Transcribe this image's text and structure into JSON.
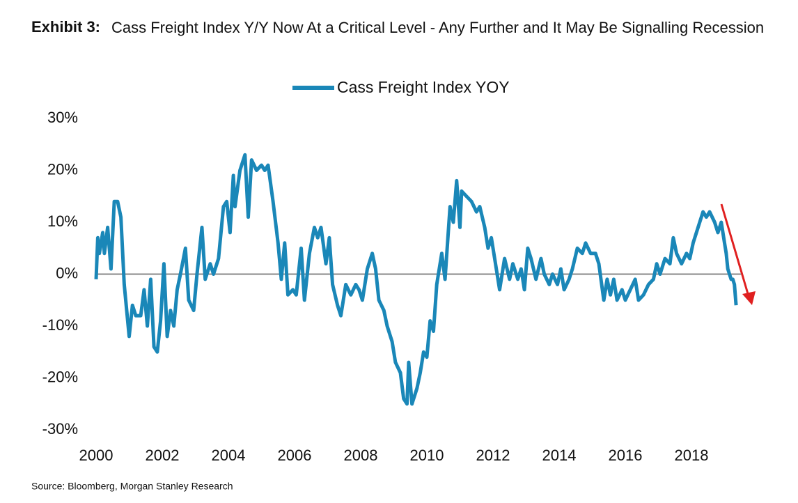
{
  "chart_data": {
    "type": "line",
    "exhibit": "Exhibit 3:",
    "title": "Cass Freight Index Y/Y Now At a Critical Level - Any Further and It May Be Signalling Recession",
    "source": "Source: Bloomberg, Morgan Stanley Research",
    "x": [
      2000.0,
      2000.05,
      2000.1,
      2000.2,
      2000.25,
      2000.35,
      2000.45,
      2000.55,
      2000.65,
      2000.75,
      2000.85,
      2001.0,
      2001.1,
      2001.2,
      2001.35,
      2001.45,
      2001.55,
      2001.65,
      2001.75,
      2001.85,
      2001.95,
      2002.05,
      2002.15,
      2002.25,
      2002.35,
      2002.45,
      2002.55,
      2002.7,
      2002.8,
      2002.95,
      2003.05,
      2003.2,
      2003.3,
      2003.45,
      2003.55,
      2003.7,
      2003.85,
      2003.95,
      2004.05,
      2004.15,
      2004.2,
      2004.35,
      2004.5,
      2004.6,
      2004.7,
      2004.85,
      2005.0,
      2005.1,
      2005.2,
      2005.35,
      2005.5,
      2005.6,
      2005.7,
      2005.8,
      2005.95,
      2006.05,
      2006.2,
      2006.3,
      2006.45,
      2006.6,
      2006.7,
      2006.8,
      2006.95,
      2007.05,
      2007.15,
      2007.3,
      2007.4,
      2007.55,
      2007.7,
      2007.85,
      2007.95,
      2008.05,
      2008.2,
      2008.35,
      2008.45,
      2008.55,
      2008.7,
      2008.8,
      2008.95,
      2009.05,
      2009.2,
      2009.3,
      2009.4,
      2009.45,
      2009.55,
      2009.7,
      2009.8,
      2009.9,
      2010.0,
      2010.1,
      2010.2,
      2010.3,
      2010.45,
      2010.55,
      2010.7,
      2010.8,
      2010.9,
      2011.0,
      2011.05,
      2011.2,
      2011.35,
      2011.5,
      2011.6,
      2011.75,
      2011.85,
      2011.95,
      2012.05,
      2012.2,
      2012.35,
      2012.5,
      2012.6,
      2012.75,
      2012.85,
      2012.95,
      2013.05,
      2013.15,
      2013.3,
      2013.45,
      2013.55,
      2013.7,
      2013.8,
      2013.95,
      2014.05,
      2014.15,
      2014.3,
      2014.4,
      2014.55,
      2014.7,
      2014.8,
      2014.95,
      2015.1,
      2015.2,
      2015.35,
      2015.45,
      2015.55,
      2015.65,
      2015.75,
      2015.9,
      2016.0,
      2016.15,
      2016.3,
      2016.4,
      2016.55,
      2016.7,
      2016.85,
      2016.95,
      2017.05,
      2017.2,
      2017.35,
      2017.45,
      2017.55,
      2017.7,
      2017.85,
      2017.95,
      2018.05,
      2018.2,
      2018.35,
      2018.45,
      2018.55,
      2018.7,
      2018.8,
      2018.9,
      2019.0,
      2019.05,
      2019.1,
      2019.15,
      2019.2,
      2019.25,
      2019.3,
      2019.35
    ],
    "series": [
      {
        "name": "Cass Freight Index YOY",
        "color": "#1a87b8",
        "values": [
          -1,
          7,
          4,
          8,
          4,
          9,
          1,
          14,
          14,
          11,
          -2,
          -12,
          -6,
          -8,
          -8,
          -3,
          -10,
          -1,
          -14,
          -15,
          -9,
          2,
          -12,
          -7,
          -10,
          -3,
          0,
          5,
          -5,
          -7,
          0,
          9,
          -1,
          2,
          0,
          3,
          13,
          14,
          8,
          19,
          13,
          20,
          23,
          11,
          22,
          20,
          21,
          20,
          21,
          14,
          6,
          -1,
          6,
          -4,
          -3,
          -4,
          5,
          -5,
          4,
          9,
          7,
          9,
          2,
          7,
          -2,
          -6,
          -8,
          -2,
          -4,
          -2,
          -3,
          -5,
          1,
          4,
          1,
          -5,
          -7,
          -10,
          -13,
          -17,
          -19,
          -24,
          -25,
          -17,
          -25,
          -22,
          -19,
          -15,
          -16,
          -9,
          -11,
          -2,
          4,
          -1,
          13,
          10,
          18,
          9,
          16,
          15,
          14,
          12,
          13,
          9,
          5,
          7,
          3,
          -3,
          3,
          -1,
          2,
          -1,
          1,
          -3,
          5,
          3,
          -1,
          3,
          0,
          -2,
          0,
          -2,
          1,
          -3,
          -1,
          1,
          5,
          4,
          6,
          4,
          4,
          2,
          -5,
          -1,
          -4,
          -1,
          -5,
          -3,
          -5,
          -3,
          -1,
          -5,
          -4,
          -2,
          -1,
          2,
          0,
          3,
          2,
          7,
          4,
          2,
          4,
          3,
          6,
          9,
          12,
          11,
          12,
          10,
          8,
          10,
          6,
          4,
          1,
          0,
          -1,
          -1,
          -2,
          -6
        ]
      }
    ],
    "xlim": [
      2000,
      2019.5
    ],
    "xticks": [
      2000,
      2002,
      2004,
      2006,
      2008,
      2010,
      2012,
      2014,
      2016,
      2018
    ],
    "ylim": [
      -30,
      30
    ],
    "yticks": [
      {
        "value": -30,
        "label": "-30%"
      },
      {
        "value": -20,
        "label": "-20%"
      },
      {
        "value": -10,
        "label": "-10%"
      },
      {
        "value": 0,
        "label": "0%"
      },
      {
        "value": 10,
        "label": "10%"
      },
      {
        "value": 20,
        "label": "20%"
      },
      {
        "value": 30,
        "label": "30%"
      }
    ],
    "zero_line": true,
    "legend": "top"
  }
}
